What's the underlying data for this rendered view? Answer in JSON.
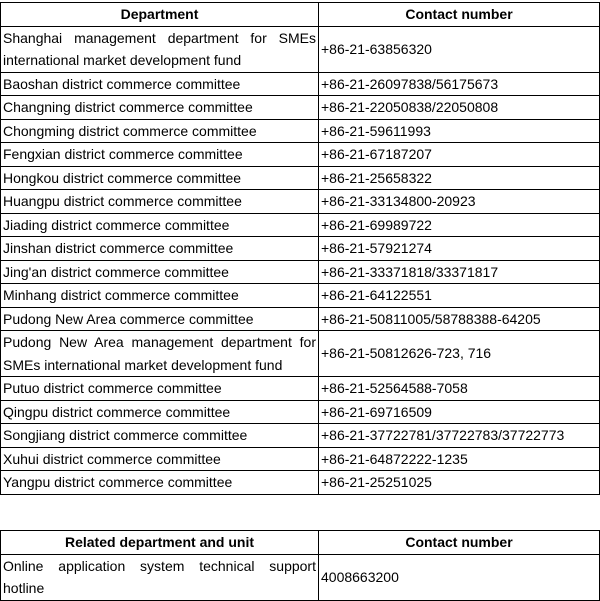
{
  "tables": [
    {
      "header": [
        "Department",
        "Contact number"
      ],
      "rows": [
        [
          "Shanghai management department for SMEs international market development fund",
          "+86-21-63856320"
        ],
        [
          "Baoshan district commerce committee",
          "+86-21-26097838/56175673"
        ],
        [
          "Changning district commerce committee",
          "+86-21-22050838/22050808"
        ],
        [
          "Chongming district commerce committee",
          "+86-21-59611993"
        ],
        [
          "Fengxian district commerce committee",
          "+86-21-67187207"
        ],
        [
          "Hongkou district commerce committee",
          "+86-21-25658322"
        ],
        [
          "Huangpu district commerce committee",
          "+86-21-33134800-20923"
        ],
        [
          "Jiading district commerce committee",
          "+86-21-69989722"
        ],
        [
          "Jinshan district commerce committee",
          "+86-21-57921274"
        ],
        [
          "Jing'an district commerce committee",
          "+86-21-33371818/33371817"
        ],
        [
          "Minhang district commerce committee",
          "+86-21-64122551"
        ],
        [
          "Pudong New Area commerce committee",
          "+86-21-50811005/58788388-64205"
        ],
        [
          "Pudong New Area management department for SMEs international market development fund",
          "+86-21-50812626-723, 716"
        ],
        [
          "Putuo district commerce committee",
          "+86-21-52564588-7058"
        ],
        [
          "Qingpu district commerce committee",
          "+86-21-69716509"
        ],
        [
          "Songjiang district commerce committee",
          "+86-21-37722781/37722783/37722773"
        ],
        [
          "Xuhui district commerce committee",
          "+86-21-64872222-1235"
        ],
        [
          "Yangpu district commerce committee",
          "+86-21-25251025"
        ]
      ]
    },
    {
      "header": [
        "Related department and unit",
        "Contact number"
      ],
      "rows": [
        [
          "Online application system technical support hotline",
          "4008663200"
        ]
      ]
    }
  ]
}
